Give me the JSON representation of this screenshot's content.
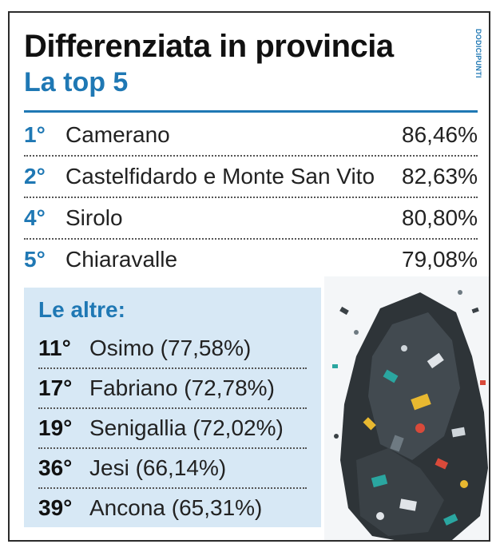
{
  "title": "Differenziata in provincia",
  "subtitle": "La top 5",
  "credit": "DODICIPUNTI",
  "top_ranking": [
    {
      "rank": "1°",
      "name": "Camerano",
      "value": "86,46%"
    },
    {
      "rank": "2°",
      "name": "Castelfidardo e Monte San Vito",
      "value": "82,63%"
    },
    {
      "rank": "4°",
      "name": "Sirolo",
      "value": "80,80%"
    },
    {
      "rank": "5°",
      "name": "Chiaravalle",
      "value": "79,08%"
    }
  ],
  "others": {
    "title": "Le altre:",
    "items": [
      {
        "rank": "11°",
        "text": "Osimo (77,58%)"
      },
      {
        "rank": "17°",
        "text": "Fabriano (72,78%)"
      },
      {
        "rank": "19°",
        "text": "Senigallia (72,02%)"
      },
      {
        "rank": "36°",
        "text": "Jesi (66,14%)"
      },
      {
        "rank": "39°",
        "text": "Ancona (65,31%)"
      }
    ]
  },
  "colors": {
    "accent": "#1f78b4",
    "panel": "#d7e8f5",
    "border": "#2b2b2b"
  }
}
